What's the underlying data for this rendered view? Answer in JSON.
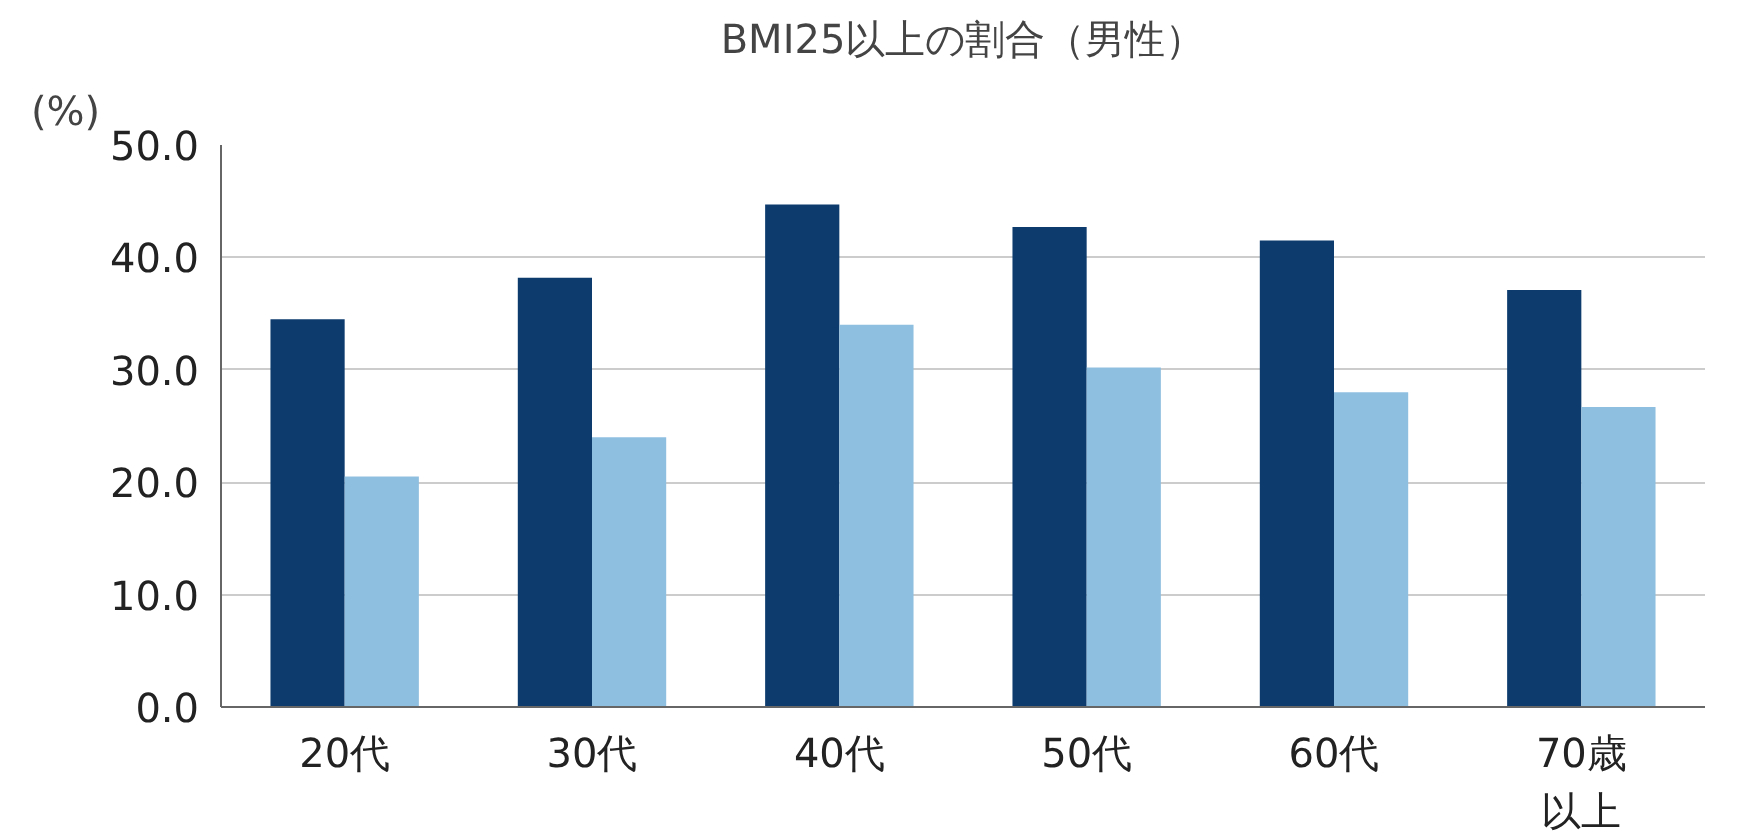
{
  "chart_data": {
    "type": "bar",
    "title": "BMI25以上の割合（男性）",
    "ylabel": "(%)",
    "categories": [
      "20代",
      "30代",
      "40代",
      "50代",
      "60代",
      "70歳以上"
    ],
    "series": [
      {
        "color": "#0d3b6e",
        "values": [
          34.5,
          38.2,
          44.7,
          42.7,
          41.5,
          37.1
        ]
      },
      {
        "color": "#8fbfe0",
        "values": [
          20.5,
          24.0,
          34.0,
          30.2,
          28.0,
          26.7
        ]
      }
    ],
    "ylim": [
      0,
      50
    ],
    "yticks": [
      {
        "value": 0,
        "label": "0.0"
      },
      {
        "value": 10,
        "label": "10.0"
      },
      {
        "value": 20,
        "label": "20.0"
      },
      {
        "value": 30,
        "label": "30.0"
      },
      {
        "value": 40,
        "label": "40.0"
      },
      {
        "value": 50,
        "label": "50.0"
      }
    ],
    "grid": "y"
  }
}
